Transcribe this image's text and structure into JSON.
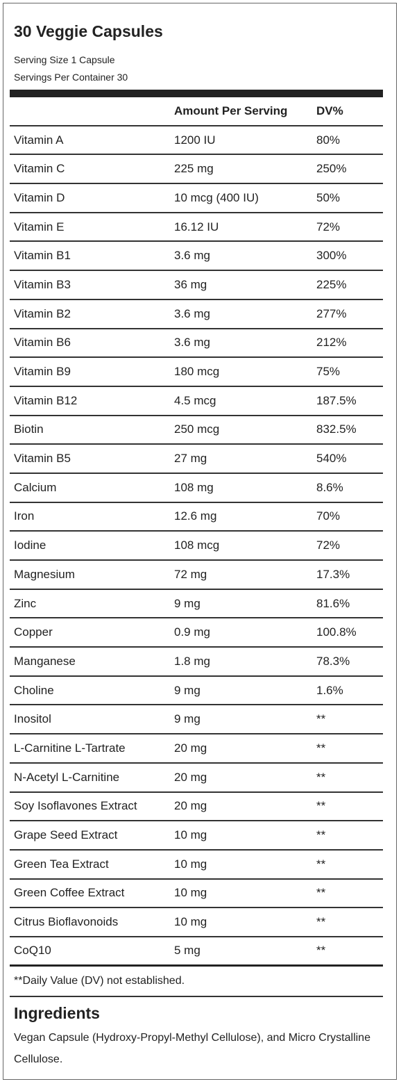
{
  "header": {
    "title": "30 Veggie Capsules",
    "serving_size": "Serving Size 1 Capsule",
    "servings_per_container": "Servings Per Container 30"
  },
  "table": {
    "headers": [
      "Amount Per Serving",
      "DV%"
    ],
    "rows": [
      [
        "Vitamin A",
        "1200 IU",
        "80%"
      ],
      [
        "Vitamin C",
        "225 mg",
        "250%"
      ],
      [
        "Vitamin D",
        "10 mcg (400 IU)",
        "50%"
      ],
      [
        "Vitamin E",
        "16.12 IU",
        "72%"
      ],
      [
        "Vitamin B1",
        "3.6 mg",
        "300%"
      ],
      [
        "Vitamin B3",
        "36 mg",
        "225%"
      ],
      [
        "Vitamin B2",
        "3.6 mg",
        "277%"
      ],
      [
        "Vitamin B6",
        "3.6 mg",
        "212%"
      ],
      [
        "Vitamin B9",
        "180 mcg",
        "75%"
      ],
      [
        "Vitamin B12",
        "4.5 mcg",
        "187.5%"
      ],
      [
        "Biotin",
        "250 mcg",
        "832.5%"
      ],
      [
        "Vitamin B5",
        "27 mg",
        "540%"
      ],
      [
        "Calcium",
        "108 mg",
        "8.6%"
      ],
      [
        "Iron",
        "12.6 mg",
        "70%"
      ],
      [
        "Iodine",
        "108 mcg",
        "72%"
      ],
      [
        "Magnesium",
        "72 mg",
        "17.3%"
      ],
      [
        "Zinc",
        "9 mg",
        "81.6%"
      ],
      [
        "Copper",
        "0.9 mg",
        "100.8%"
      ],
      [
        "Manganese",
        "1.8 mg",
        "78.3%"
      ],
      [
        "Choline",
        "9 mg",
        "1.6%"
      ],
      [
        "Inositol",
        "9 mg",
        "**"
      ],
      [
        "L-Carnitine L-Tartrate",
        "20 mg",
        "**"
      ],
      [
        "N-Acetyl L-Carnitine",
        "20 mg",
        "**"
      ],
      [
        "Soy Isoflavones Extract",
        "20 mg",
        "**"
      ],
      [
        "Grape Seed Extract",
        "10 mg",
        "**"
      ],
      [
        "Green Tea Extract",
        "10 mg",
        "**"
      ],
      [
        "Green Coffee Extract",
        "10 mg",
        "**"
      ],
      [
        "Citrus Bioflavonoids",
        "10 mg",
        "**"
      ],
      [
        "CoQ10",
        "5 mg",
        "**"
      ]
    ],
    "footnote": "**Daily Value (DV) not established."
  },
  "ingredients": {
    "title": "Ingredients",
    "text": "Vegan Capsule (Hydroxy-Propyl-Methyl Cellulose), and Micro Crystalline Cellulose."
  }
}
